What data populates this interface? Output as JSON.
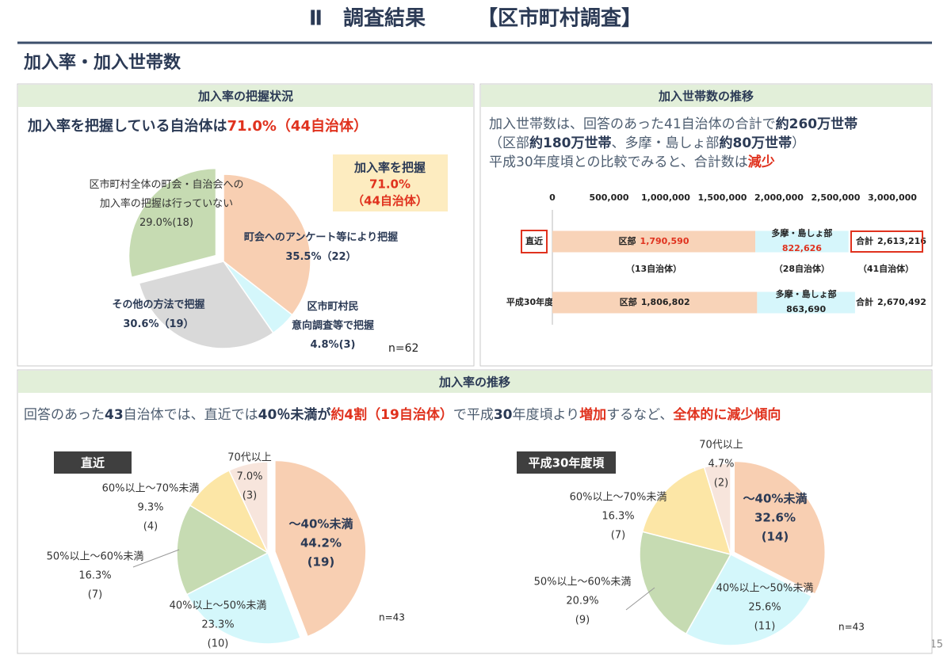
{
  "header": {
    "title": "Ⅱ　調査結果　　　【区市町村調査】",
    "section": "加入率・加入世帯数",
    "page": "15"
  },
  "panels": [
    {
      "heading": "加入率の把握状況",
      "lead": [
        [
          {
            "text": "加入率を把握している自治体は",
            "style": "bold"
          },
          {
            "text": "71.0%（44自治体）",
            "style": "red"
          }
        ]
      ],
      "callout": [
        "加入率を把握",
        "71.0%",
        "（44自治体）"
      ],
      "note": "n=62"
    },
    {
      "heading": "加入世帯数の推移",
      "lead": [
        [
          {
            "text": "加入世帯数は、回答のあった41自治体の合計で",
            "style": "plain"
          },
          {
            "text": "約260万世帯",
            "style": "bold"
          }
        ],
        [
          {
            "text": "（区部",
            "style": "plain"
          },
          {
            "text": "約180万世帯",
            "style": "bold"
          },
          {
            "text": "、多摩・島しょ部",
            "style": "plain"
          },
          {
            "text": "約80万世帯",
            "style": "bold"
          },
          {
            "text": "）",
            "style": "plain"
          }
        ],
        [
          {
            "text": "平成30年度頃との比較でみると、合計数は",
            "style": "plain"
          },
          {
            "text": "減少",
            "style": "red"
          }
        ]
      ]
    },
    {
      "heading": "加入率の推移",
      "lead": [
        [
          {
            "text": "回答のあった",
            "style": "plain"
          },
          {
            "text": "43",
            "style": "bold"
          },
          {
            "text": "自治体では、直近では",
            "style": "plain"
          },
          {
            "text": "40％未満が",
            "style": "bold"
          },
          {
            "text": "約4割（19自治体）",
            "style": "red"
          },
          {
            "text": "で平成",
            "style": "plain"
          },
          {
            "text": "30",
            "style": "bold"
          },
          {
            "text": "年度頃より",
            "style": "plain"
          },
          {
            "text": "増加",
            "style": "red"
          },
          {
            "text": "するなど、",
            "style": "plain"
          },
          {
            "text": "全体的に減少傾向",
            "style": "red"
          }
        ]
      ]
    }
  ],
  "chart_data": [
    {
      "type": "pie",
      "categories": [
        "町会へのアンケート等により把握",
        "区市町村民\n意向調査等で把握",
        "その他の方法で把握",
        "区市町村全体の町会・自治会への\n加入率の把握は行っていない"
      ],
      "values": [
        35.5,
        4.8,
        30.6,
        29.0
      ],
      "value_labels": [
        "35.5%",
        "4.8%",
        "30.6%",
        "29.0%"
      ],
      "counts": [
        22,
        3,
        19,
        18
      ],
      "count_labels": [
        "（22）",
        "(3)",
        "（19）",
        "(18)"
      ],
      "colors": [
        "#f8cfb2",
        "#d4f7fb",
        "#d9d9d9",
        "#c6dbb2"
      ],
      "explode": [
        false,
        false,
        false,
        true
      ]
    },
    {
      "type": "hbar",
      "categories": [
        "直近",
        "平成30年度頃"
      ],
      "series": [
        {
          "name": "区部",
          "color": "#f8d3b8",
          "values": [
            1790590,
            1806802
          ],
          "value_labels": [
            "1,790,590",
            "1,806,802"
          ]
        },
        {
          "name": "多摩・島しょ部",
          "color": "#d6f6fb",
          "values": [
            822626,
            863690
          ],
          "value_labels": [
            "822,626",
            "863,690"
          ]
        }
      ],
      "total_name": "合計",
      "totals": [
        2613216,
        2670492
      ],
      "total_labels": [
        "2,613,216",
        "2,670,492"
      ],
      "notes": [
        "（13自治体）",
        "（28自治体）",
        "（41自治体）"
      ],
      "xlim": [
        0,
        3000000
      ],
      "xticks": [
        0,
        {
          "value": 500000,
          "label": "500,000"
        },
        {
          "value": 1000000,
          "label": "1,000,000"
        },
        {
          "value": 1500000,
          "label": "1,500,000"
        },
        {
          "value": 2000000,
          "label": "2,000,000"
        },
        {
          "value": 2500000,
          "label": "2,500,000"
        },
        {
          "value": 3000000,
          "label": "3,000,000"
        }
      ]
    },
    {
      "type": "pie",
      "title": "直近",
      "note": "n=43",
      "categories": [
        "～40%未満",
        "40%以上～50%未満",
        "50%以上～60%未満",
        "60%以上～70%未満",
        "70代以上"
      ],
      "values": [
        44.2,
        23.3,
        16.3,
        9.3,
        7.0
      ],
      "value_labels": [
        "44.2%",
        "23.3%",
        "16.3%",
        "9.3%",
        "7.0%"
      ],
      "counts": [
        19,
        10,
        7,
        4,
        3
      ],
      "count_labels": [
        "(19)",
        "(10)",
        "(7)",
        "(4)",
        "(3)"
      ],
      "colors": [
        "#f8cfb2",
        "#d4f7fb",
        "#c6dbb2",
        "#fce6a6",
        "#f7e5dc"
      ],
      "explode": [
        true,
        false,
        false,
        false,
        false
      ]
    },
    {
      "type": "pie",
      "title": "平成30年度頃",
      "note": "n=43",
      "categories": [
        "～40%未満",
        "40%以上～50%未満",
        "50%以上～60%未満",
        "60%以上～70%未満",
        "70代以上"
      ],
      "values": [
        32.6,
        25.6,
        20.9,
        16.3,
        4.7
      ],
      "value_labels": [
        "32.6%",
        "25.6%",
        "20.9%",
        "16.3%",
        "4.7%"
      ],
      "counts": [
        14,
        11,
        9,
        7,
        2
      ],
      "count_labels": [
        "(14)",
        "(11)",
        "(9)",
        "(7)",
        "(2)"
      ],
      "colors": [
        "#f8cfb2",
        "#d4f7fb",
        "#c6dbb2",
        "#fce6a6",
        "#f7e5dc"
      ],
      "explode": [
        true,
        false,
        false,
        false,
        false
      ]
    }
  ]
}
